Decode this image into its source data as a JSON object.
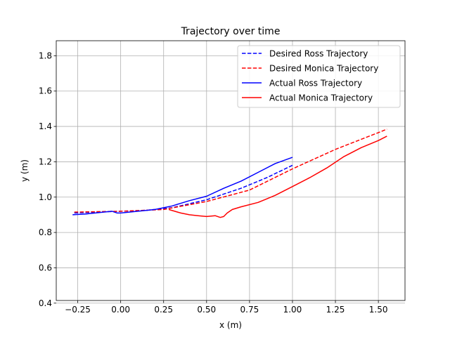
{
  "chart_data": {
    "type": "line",
    "title": "Trajectory over time",
    "xlabel": "x (m)",
    "ylabel": "y (m)",
    "xlim": [
      -0.375,
      1.655
    ],
    "ylim": [
      0.415,
      1.885
    ],
    "xticks": [
      -0.25,
      0.0,
      0.25,
      0.5,
      0.75,
      1.0,
      1.25,
      1.5
    ],
    "xtick_labels": [
      "−0.25",
      "0.00",
      "0.25",
      "0.50",
      "0.75",
      "1.00",
      "1.25",
      "1.50"
    ],
    "yticks": [
      0.4,
      0.6,
      0.8,
      1.0,
      1.2,
      1.4,
      1.6,
      1.8
    ],
    "ytick_labels": [
      "0.4",
      "0.6",
      "0.8",
      "1.0",
      "1.2",
      "1.4",
      "1.6",
      "1.8"
    ],
    "grid": true,
    "legend_position": "upper right",
    "series": [
      {
        "name": "Desired Ross Trajectory",
        "color": "#0000ff",
        "dash": true,
        "x": [
          -0.27,
          -0.15,
          0.0,
          0.15,
          0.3,
          0.5,
          0.7,
          0.85,
          1.0
        ],
        "y": [
          0.91,
          0.915,
          0.92,
          0.925,
          0.94,
          0.985,
          1.05,
          1.11,
          1.18
        ]
      },
      {
        "name": "Desired Monica Trajectory",
        "color": "#ff0000",
        "dash": true,
        "x": [
          -0.27,
          0.0,
          0.25,
          0.5,
          0.75,
          1.0,
          1.25,
          1.5,
          1.55
        ],
        "y": [
          0.915,
          0.92,
          0.93,
          0.975,
          1.04,
          1.16,
          1.27,
          1.365,
          1.385
        ]
      },
      {
        "name": "Actual Ross Trajectory",
        "color": "#0000ff",
        "dash": false,
        "x": [
          -0.28,
          -0.2,
          -0.1,
          -0.05,
          -0.02,
          0.0,
          0.1,
          0.2,
          0.3,
          0.4,
          0.5,
          0.6,
          0.7,
          0.8,
          0.9,
          1.0
        ],
        "y": [
          0.9,
          0.905,
          0.915,
          0.92,
          0.91,
          0.91,
          0.92,
          0.93,
          0.95,
          0.98,
          1.005,
          1.05,
          1.09,
          1.14,
          1.19,
          1.225
        ]
      },
      {
        "name": "Actual Monica Trajectory",
        "color": "#ff0000",
        "dash": false,
        "x": [
          0.28,
          0.35,
          0.4,
          0.45,
          0.5,
          0.55,
          0.58,
          0.6,
          0.62,
          0.65,
          0.7,
          0.8,
          0.9,
          1.0,
          1.1,
          1.2,
          1.3,
          1.4,
          1.5,
          1.55
        ],
        "y": [
          0.93,
          0.91,
          0.9,
          0.895,
          0.89,
          0.895,
          0.885,
          0.89,
          0.91,
          0.93,
          0.945,
          0.97,
          1.01,
          1.06,
          1.11,
          1.165,
          1.23,
          1.28,
          1.32,
          1.345
        ]
      }
    ]
  }
}
